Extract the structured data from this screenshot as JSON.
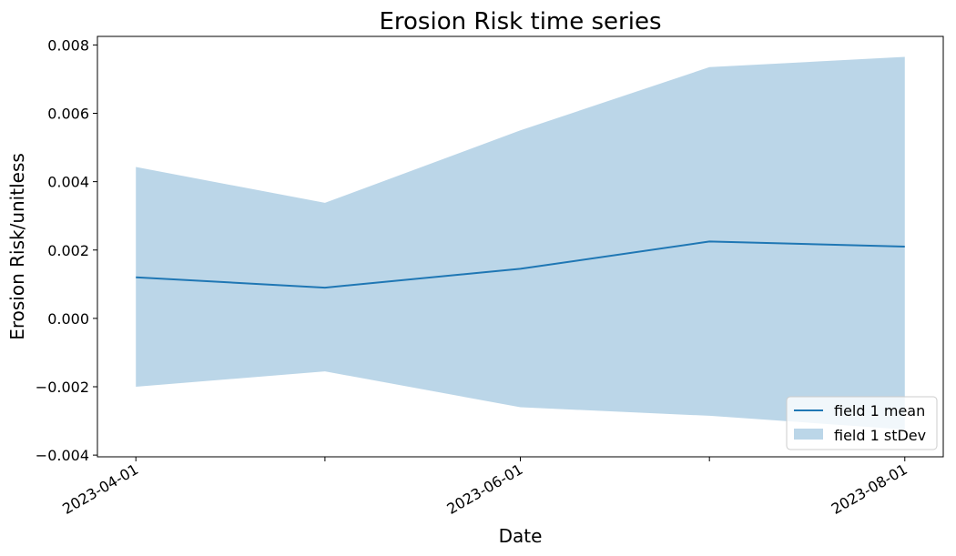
{
  "chart_data": {
    "type": "line",
    "title": "Erosion Risk time series",
    "xlabel": "Date",
    "ylabel": "Erosion Risk/unitless",
    "x": [
      "2023-04-01",
      "2023-05-01",
      "2023-06-01",
      "2023-07-01",
      "2023-08-01"
    ],
    "xticks": [
      "2023-04-01",
      "2023-05-01",
      "2023-06-01",
      "2023-07-01",
      "2023-08-01"
    ],
    "xtick_labels": [
      "2023-04-01",
      "",
      "2023-06-01",
      "",
      "2023-08-01"
    ],
    "ylim": [
      -0.00405,
      0.00825
    ],
    "yticks": [
      -0.004,
      -0.002,
      0.0,
      0.002,
      0.004,
      0.006,
      0.008
    ],
    "ytick_labels": [
      "−0.004",
      "−0.002",
      "0.000",
      "0.002",
      "0.004",
      "0.006",
      "0.008"
    ],
    "grid": false,
    "legend_position": "lower-right",
    "series": [
      {
        "name": "field 1 mean",
        "kind": "line",
        "color": "#1f77b4",
        "values": [
          0.0012,
          0.0009,
          0.00145,
          0.00225,
          0.0021
        ]
      },
      {
        "name": "field 1 stDev",
        "kind": "band",
        "color": "#1f77b4",
        "opacity": 0.3,
        "upper": [
          0.00443,
          0.00338,
          0.0055,
          0.00735,
          0.00765
        ],
        "lower": [
          -0.002,
          -0.00155,
          -0.0026,
          -0.00285,
          -0.00325
        ]
      }
    ]
  }
}
